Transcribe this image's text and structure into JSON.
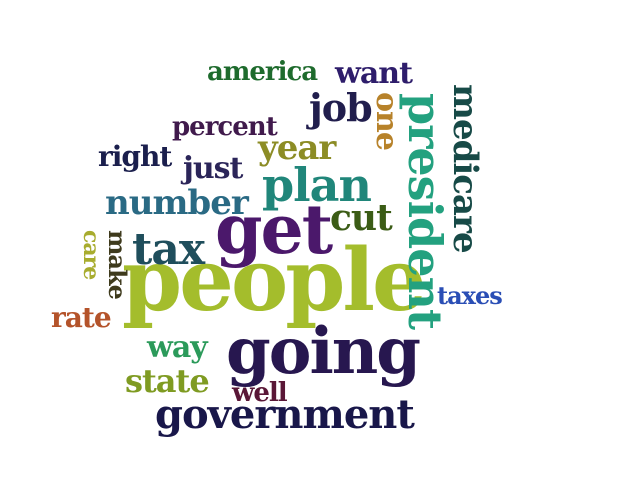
{
  "cloud": {
    "words": {
      "people": {
        "text": "people",
        "color": "#a4bd2c"
      },
      "going": {
        "text": "going",
        "color": "#27174f"
      },
      "get": {
        "text": "get",
        "color": "#4b186b"
      },
      "government": {
        "text": "government",
        "color": "#19174a"
      },
      "plan": {
        "text": "plan",
        "color": "#20867a"
      },
      "president": {
        "text": "president",
        "color": "#23a17f"
      },
      "medicare": {
        "text": "medicare",
        "color": "#174a47"
      },
      "tax": {
        "text": "tax",
        "color": "#1f4e5c"
      },
      "number": {
        "text": "number",
        "color": "#2a6a84"
      },
      "cut": {
        "text": "cut",
        "color": "#3b5c16"
      },
      "state": {
        "text": "state",
        "color": "#7f9b22"
      },
      "job": {
        "text": "job",
        "color": "#211e4d"
      },
      "year": {
        "text": "year",
        "color": "#8c8c25"
      },
      "one": {
        "text": "one",
        "color": "#b7822a"
      },
      "want": {
        "text": "want",
        "color": "#2e1d6b"
      },
      "america": {
        "text": "america",
        "color": "#1e6b2d"
      },
      "way": {
        "text": "way",
        "color": "#2b9a5a"
      },
      "right": {
        "text": "right",
        "color": "#1b1f4d"
      },
      "just": {
        "text": "just",
        "color": "#2b2559"
      },
      "percent": {
        "text": "percent",
        "color": "#401a4c"
      },
      "well": {
        "text": "well",
        "color": "#5a1737"
      },
      "taxes": {
        "text": "taxes",
        "color": "#2a4eb5"
      },
      "rate": {
        "text": "rate",
        "color": "#b4532a"
      },
      "make": {
        "text": "make",
        "color": "#3e3a1c"
      },
      "care": {
        "text": "care",
        "color": "#a8ac2e"
      }
    }
  }
}
